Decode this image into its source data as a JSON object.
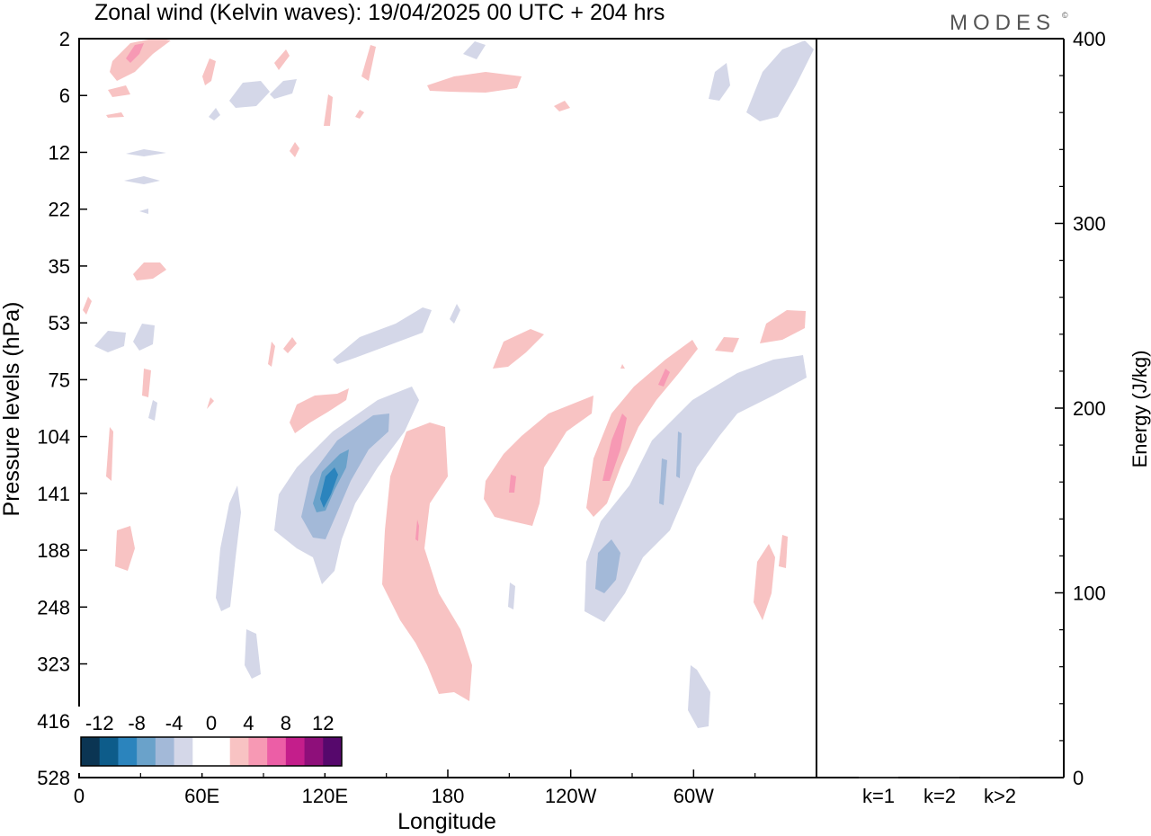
{
  "title": "Zonal wind (Kelvin waves):  19/04/2025  00 UTC  + 204 hrs",
  "logo": "MODES",
  "logo_mark": "©",
  "chart_data": [
    {
      "type": "heatmap",
      "title": "Zonal wind (Kelvin waves):  19/04/2025  00 UTC  + 204 hrs",
      "xlabel": "Longitude",
      "ylabel": "Pressure levels (hPa)",
      "x_ticks": [
        "0",
        "60E",
        "120E",
        "180",
        "120W",
        "60W"
      ],
      "x_range_deg": [
        0,
        360
      ],
      "y_ticks": [
        "2",
        "6",
        "12",
        "22",
        "35",
        "53",
        "75",
        "104",
        "141",
        "188",
        "248",
        "323",
        "416",
        "528"
      ],
      "y_scale": "log-like, pressure increasing downward",
      "colorbar": {
        "labels": [
          "-12",
          "-8",
          "-4",
          "0",
          "4",
          "8",
          "12"
        ],
        "colors": [
          "#0b3553",
          "#0d5c8a",
          "#2b84bd",
          "#6aa2ca",
          "#a3b9d8",
          "#d4d7e8",
          "#ffffff",
          "#ffffff",
          "#f8c3c3",
          "#f799b4",
          "#ec5ea6",
          "#c41e8b",
          "#8e0f7a",
          "#56086c"
        ]
      },
      "fields": [
        {
          "name": "positive",
          "color": "#f8c3c3",
          "approx": "tilted bands near 150E-170E (140-416 hPa), 150W-160W (104-188 hPa), 130W-100W (75-160 hPa), and upper levels 2-12 hPa"
        },
        {
          "name": "negative",
          "color": "#d4d7e8",
          "approx": "tilted bands near 100E-150E (90-300 hPa, core below -8), 90W-30W (75-248 hPa), and upper levels"
        }
      ]
    },
    {
      "type": "bar",
      "ylabel": "Energy (J/kg)",
      "categories": [
        "k=1",
        "k=2",
        "k>2"
      ],
      "values": [
        0,
        0,
        0
      ],
      "ylim": [
        0,
        400
      ],
      "y_ticks": [
        "0",
        "100",
        "200",
        "300",
        "400"
      ]
    }
  ]
}
